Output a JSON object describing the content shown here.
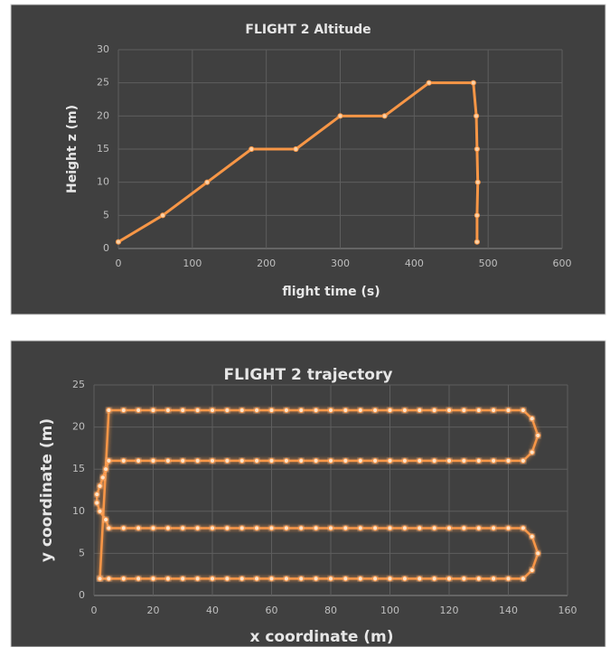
{
  "chart_data": [
    {
      "type": "line",
      "title": "FLIGHT 2 Altitude",
      "x_label": "flight  time (s)",
      "y_label": "Height z (m)",
      "x": [
        0,
        60,
        120,
        180,
        240,
        300,
        360,
        420,
        480,
        484,
        485,
        486,
        485,
        485
      ],
      "values": [
        1,
        5,
        10,
        15,
        15,
        20,
        20,
        25,
        25,
        20,
        15,
        10,
        5,
        1
      ],
      "color": "#f79646",
      "grid": true,
      "xlim": [
        0,
        600
      ],
      "xticks": [
        0,
        100,
        200,
        300,
        400,
        500,
        600
      ],
      "ylim": [
        0,
        30
      ],
      "yticks": [
        0,
        5,
        10,
        15,
        20,
        25,
        30
      ]
    },
    {
      "type": "line",
      "title": "FLIGHT 2 trajectory",
      "x_label": "x coordinate (m)",
      "y_label": "y coordinate (m)",
      "x": [
        2,
        5,
        10,
        15,
        20,
        25,
        30,
        35,
        40,
        45,
        50,
        55,
        60,
        65,
        70,
        75,
        80,
        85,
        90,
        95,
        100,
        105,
        110,
        115,
        120,
        125,
        130,
        135,
        140,
        145,
        148,
        150,
        148,
        145,
        140,
        135,
        130,
        125,
        120,
        115,
        110,
        105,
        100,
        95,
        90,
        85,
        80,
        75,
        70,
        65,
        60,
        55,
        50,
        45,
        40,
        35,
        30,
        25,
        20,
        15,
        10,
        5,
        4,
        2,
        1,
        1,
        2,
        3,
        4,
        5,
        10,
        15,
        20,
        25,
        30,
        35,
        40,
        45,
        50,
        55,
        60,
        65,
        70,
        75,
        80,
        85,
        90,
        95,
        100,
        105,
        110,
        115,
        120,
        125,
        130,
        135,
        140,
        145,
        148,
        150,
        148,
        145,
        140,
        135,
        130,
        125,
        120,
        115,
        110,
        105,
        100,
        95,
        90,
        85,
        80,
        75,
        70,
        65,
        60,
        55,
        50,
        45,
        40,
        35,
        30,
        25,
        20,
        15,
        10,
        5,
        2
      ],
      "values": [
        2,
        2,
        2,
        2,
        2,
        2,
        2,
        2,
        2,
        2,
        2,
        2,
        2,
        2,
        2,
        2,
        2,
        2,
        2,
        2,
        2,
        2,
        2,
        2,
        2,
        2,
        2,
        2,
        2,
        2,
        3,
        5,
        7,
        8,
        8,
        8,
        8,
        8,
        8,
        8,
        8,
        8,
        8,
        8,
        8,
        8,
        8,
        8,
        8,
        8,
        8,
        8,
        8,
        8,
        8,
        8,
        8,
        8,
        8,
        8,
        8,
        8,
        9,
        10,
        11,
        12,
        13,
        14,
        15,
        16,
        16,
        16,
        16,
        16,
        16,
        16,
        16,
        16,
        16,
        16,
        16,
        16,
        16,
        16,
        16,
        16,
        16,
        16,
        16,
        16,
        16,
        16,
        16,
        16,
        16,
        16,
        16,
        16,
        17,
        19,
        21,
        22,
        22,
        22,
        22,
        22,
        22,
        22,
        22,
        22,
        22,
        22,
        22,
        22,
        22,
        22,
        22,
        22,
        22,
        22,
        22,
        22,
        22,
        22,
        22,
        22,
        22,
        22,
        22,
        22,
        2
      ],
      "color": "#f79646",
      "grid": true,
      "xlim": [
        0,
        160
      ],
      "xticks": [
        0,
        20,
        40,
        60,
        80,
        100,
        120,
        140,
        160
      ],
      "ylim": [
        0,
        25
      ],
      "yticks": [
        0,
        5,
        10,
        15,
        20,
        25
      ]
    }
  ]
}
